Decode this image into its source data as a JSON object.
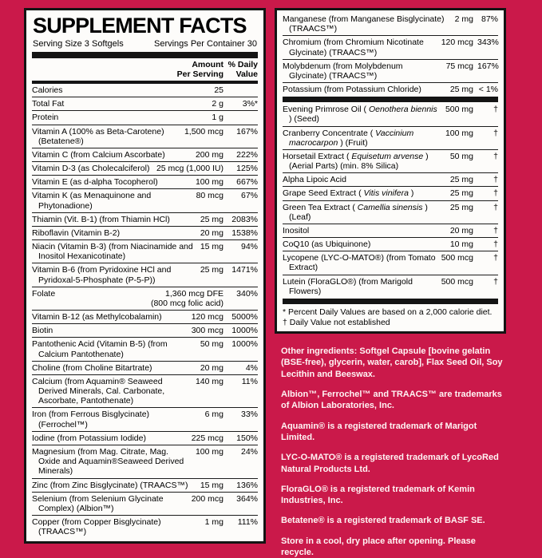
{
  "colors": {
    "background": "#CA194A",
    "panel": "#FDFCFA",
    "ink": "#141414",
    "note_text": "#FFF4F4"
  },
  "left_panel": {
    "title": "SUPPLEMENT FACTS",
    "serving_size": "Serving Size 3 Softgels",
    "servings_per_container": "Servings Per Container 30",
    "amount_header": "Amount\nPer Serving",
    "dv_header": "% Daily\nValue",
    "rows": [
      {
        "name": "Calories",
        "amount": "25",
        "dv": ""
      },
      {
        "name": "Total Fat",
        "amount": "2 g",
        "dv": "3%*"
      },
      {
        "name": "Protein",
        "amount": "1 g",
        "dv": ""
      },
      {
        "name": "Vitamin A (100% as Beta-Carotene) (Betatene®)",
        "amount": "1,500 mcg",
        "dv": "167%"
      },
      {
        "name": "Vitamin C (from Calcium Ascorbate)",
        "amount": "200 mg",
        "dv": "222%"
      },
      {
        "name": "Vitamin D-3 (as Cholecalciferol)",
        "amount": "25 mcg (1,000 IU)",
        "dv": "125%"
      },
      {
        "name": "Vitamin E (as d-alpha Tocopherol)",
        "amount": "100 mg",
        "dv": "667%"
      },
      {
        "name": "Vitamin K (as Menaquinone and Phytonadione)",
        "amount": "80 mcg",
        "dv": "67%"
      },
      {
        "name": "Thiamin (Vit. B-1) (from Thiamin HCl)",
        "amount": "25 mg",
        "dv": "2083%"
      },
      {
        "name": "Riboflavin (Vitamin B-2)",
        "amount": "20 mg",
        "dv": "1538%"
      },
      {
        "name": "Niacin (Vitamin B-3) (from Niacinamide and Inositol Hexanicotinate)",
        "amount": "15 mg",
        "dv": "94%"
      },
      {
        "name": "Vitamin B-6 (from Pyridoxine HCl and Pyridoxal-5-Phosphate (P-5-P))",
        "amount": "25 mg",
        "dv": "1471%"
      },
      {
        "name": "Folate",
        "amount": "1,360 mcg DFE\n(800 mcg folic acid)",
        "dv": "340%"
      },
      {
        "name": "Vitamin B-12 (as Methylcobalamin)",
        "amount": "120 mcg",
        "dv": "5000%"
      },
      {
        "name": "Biotin",
        "amount": "300 mcg",
        "dv": "1000%"
      },
      {
        "name": "Pantothenic Acid (Vitamin B-5) (from Calcium Pantothenate)",
        "amount": "50 mg",
        "dv": "1000%"
      },
      {
        "name": "Choline (from Choline Bitartrate)",
        "amount": "20 mg",
        "dv": "4%"
      },
      {
        "name": "Calcium (from Aquamin® Seaweed Derived Minerals, Cal. Carbonate, Ascorbate, Pantothenate)",
        "amount": "140 mg",
        "dv": "11%"
      },
      {
        "name": "Iron (from Ferrous Bisglycinate) (Ferrochel™)",
        "amount": "6 mg",
        "dv": "33%"
      },
      {
        "name": "Iodine (from Potassium Iodide)",
        "amount": "225 mcg",
        "dv": "150%"
      },
      {
        "name": "Magnesium (from Mag. Citrate, Mag. Oxide and Aquamin®Seaweed Derived Minerals)",
        "amount": "100 mg",
        "dv": "24%"
      },
      {
        "name": "Zinc (from Zinc Bisglycinate) (TRAACS™)",
        "amount": "15 mg",
        "dv": "136%"
      },
      {
        "name": "Selenium (from Selenium Glycinate Complex) (Albion™)",
        "amount": "200 mcg",
        "dv": "364%"
      },
      {
        "name": "Copper (from Copper Bisglycinate) (TRAACS™)",
        "amount": "1 mg",
        "dv": "111%"
      }
    ]
  },
  "right_panel": {
    "groups": [
      {
        "rows": [
          {
            "name": "Manganese (from Manganese Bisglycinate) (TRAACS™)",
            "amount": "2 mg",
            "dv": "87%"
          },
          {
            "name": "Chromium (from Chromium Nicotinate Glycinate) (TRAACS™)",
            "amount": "120 mcg",
            "dv": "343%"
          },
          {
            "name": "Molybdenum (from Molybdenum Glycinate) (TRAACS™)",
            "amount": "75 mcg",
            "dv": "167%"
          },
          {
            "name": "Potassium (from Potassium Chloride)",
            "amount": "25 mg",
            "dv": "< 1%"
          }
        ]
      },
      {
        "rows": [
          {
            "name": "Evening Primrose Oil ( *Oenothera biennis* ) (Seed)",
            "amount": "500 mg",
            "dv": "†"
          },
          {
            "name": "Cranberry Concentrate ( *Vaccinium macrocarpon* ) (Fruit)",
            "amount": "100 mg",
            "dv": "†"
          },
          {
            "name": "Horsetail Extract ( *Equisetum arvense* ) (Aerial Parts) (min. 8% Silica)",
            "amount": "50 mg",
            "dv": "†"
          },
          {
            "name": "Alpha Lipoic Acid",
            "amount": "25 mg",
            "dv": "†"
          },
          {
            "name": "Grape Seed Extract ( *Vitis vinifera* )",
            "amount": "25 mg",
            "dv": "†"
          },
          {
            "name": "Green Tea Extract ( *Camellia sinensis* ) (Leaf)",
            "amount": "25 mg",
            "dv": "†"
          },
          {
            "name": "Inositol",
            "amount": "20 mg",
            "dv": "†"
          },
          {
            "name": "CoQ10 (as Ubiquinone)",
            "amount": "10 mg",
            "dv": "†"
          },
          {
            "name": "Lycopene (LYC-O-MATO®) (from Tomato Extract)",
            "amount": "500 mcg",
            "dv": "†"
          },
          {
            "name": "Lutein (FloraGLO®) (from Marigold Flowers)",
            "amount": "500 mcg",
            "dv": "†"
          }
        ]
      }
    ],
    "footnotes": [
      "* Percent Daily Values are based on a 2,000 calorie diet.",
      "† Daily Value not established"
    ]
  },
  "notes": {
    "items": [
      "Other ingredients: Softgel Capsule [bovine gelatin (BSE-free), glycerin, water, carob], Flax Seed Oil, Soy Lecithin and Beeswax.",
      "Albion™, Ferrochel™ and TRAACS™ are trademarks of Albion Laboratories, Inc.",
      "Aquamin® is a registered trademark of Marigot Limited.",
      "LYC-O-MATO® is a registered trademark of LycoRed Natural Products Ltd.",
      "FloraGLO® is a registered trademark of Kemin Industries, Inc.",
      "Betatene® is a registered trademark of BASF SE.",
      "Store in a cool, dry place after opening. Please recycle."
    ]
  }
}
